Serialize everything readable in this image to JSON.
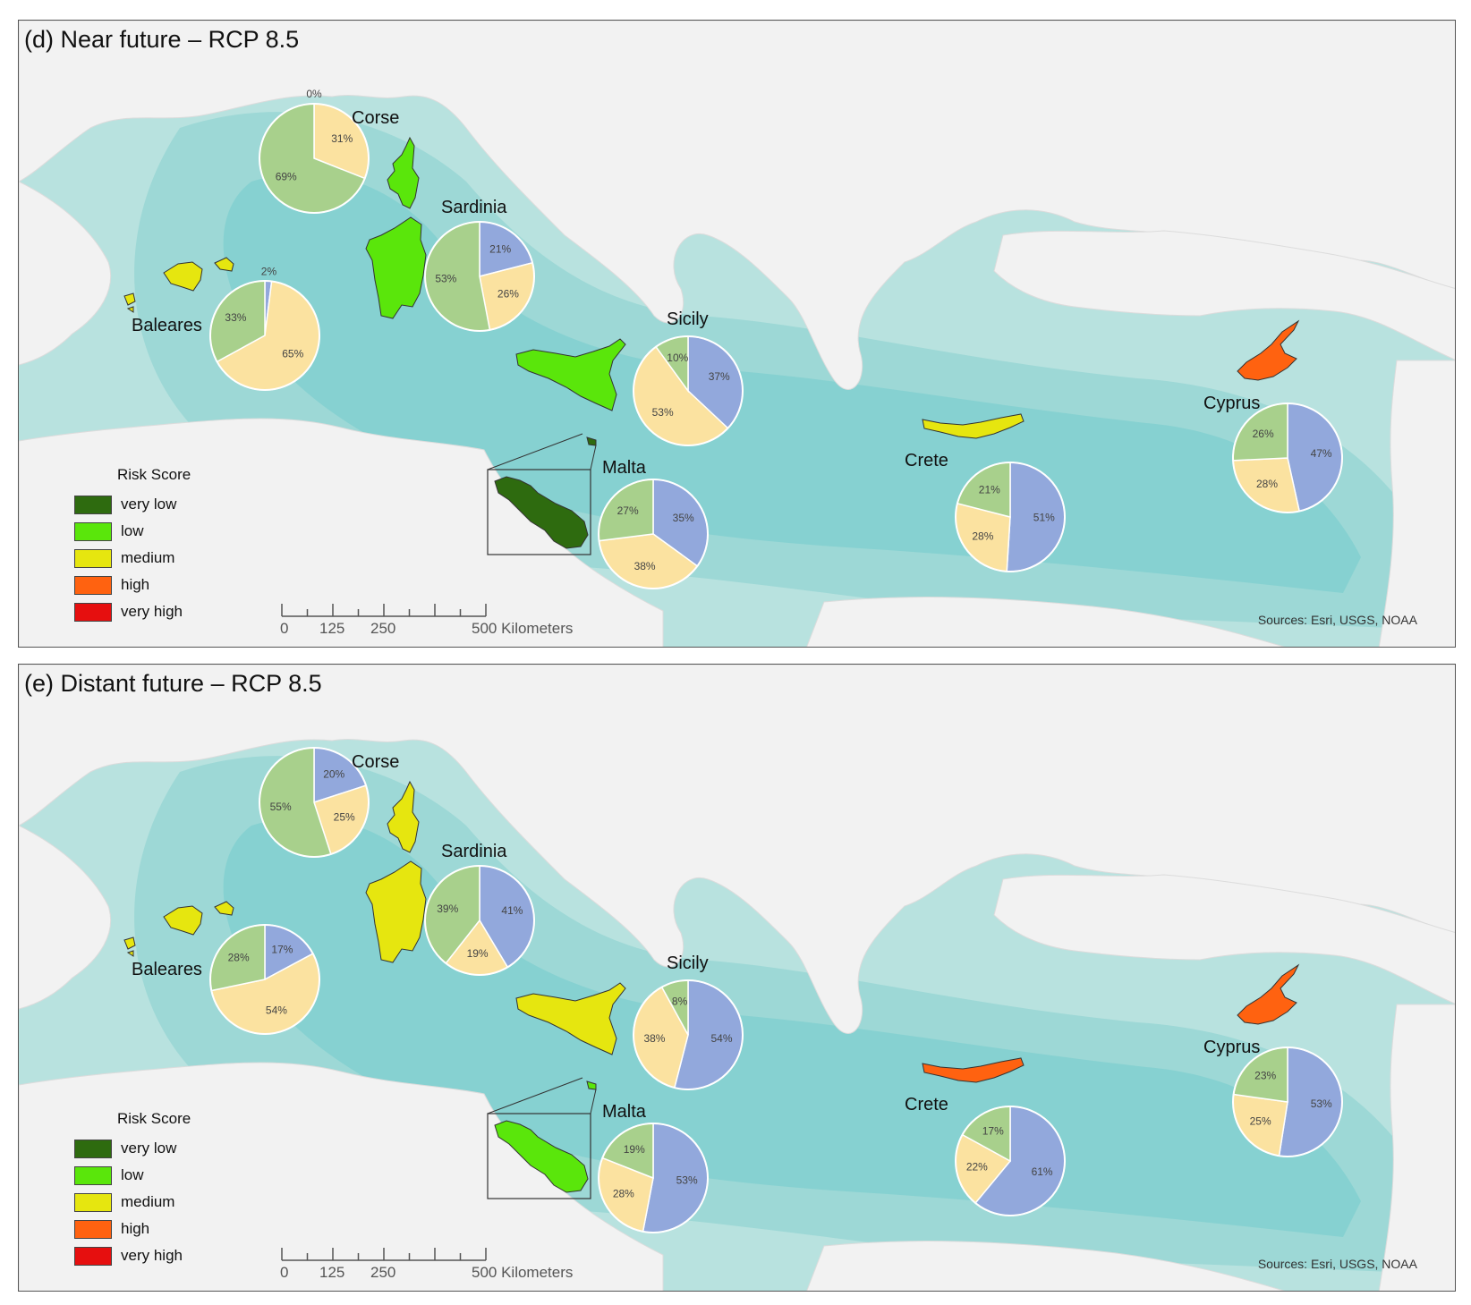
{
  "colors": {
    "sea_light": "#b8e2df",
    "sea_mid": "#9dd8d6",
    "sea_deep": "#7ccfcf",
    "land": "#f2f2f2",
    "very_low": "#2e6b0f",
    "low": "#5ae60b",
    "medium": "#e6e60f",
    "high": "#ff6210",
    "very_high": "#e60f0f",
    "pie_blue": "#92a8dc",
    "pie_yellow": "#fbe2a0",
    "pie_green": "#a8d08c"
  },
  "legend": {
    "title": "Risk Score",
    "items": [
      {
        "label": "very low",
        "color": "#2e6b0f"
      },
      {
        "label": "low",
        "color": "#5ae60b"
      },
      {
        "label": "medium",
        "color": "#e6e60f"
      },
      {
        "label": "high",
        "color": "#ff6210"
      },
      {
        "label": "very high",
        "color": "#e60f0f"
      }
    ]
  },
  "scalebar": {
    "ticks": [
      "0",
      "125",
      "250",
      "500 Kilometers"
    ]
  },
  "sources": "Sources: Esri, USGS, NOAA",
  "panels": [
    {
      "title": "(d) Near future – RCP 8.5",
      "islands": [
        {
          "name": "Corse",
          "risk": "low",
          "pie": [
            {
              "v": 0,
              "c": "blue",
              "label": "0%"
            },
            {
              "v": 31,
              "c": "yellow",
              "label": "31%"
            },
            {
              "v": 69,
              "c": "green",
              "label": "69%"
            }
          ]
        },
        {
          "name": "Sardinia",
          "risk": "low",
          "pie": [
            {
              "v": 21,
              "c": "blue",
              "label": "21%"
            },
            {
              "v": 26,
              "c": "yellow",
              "label": "26%"
            },
            {
              "v": 53,
              "c": "green",
              "label": "53%"
            }
          ]
        },
        {
          "name": "Baleares",
          "risk": "medium",
          "pie": [
            {
              "v": 2,
              "c": "blue",
              "label": "2%"
            },
            {
              "v": 65,
              "c": "yellow",
              "label": "65%"
            },
            {
              "v": 33,
              "c": "green",
              "label": "33%"
            }
          ]
        },
        {
          "name": "Sicily",
          "risk": "low",
          "pie": [
            {
              "v": 37,
              "c": "blue",
              "label": "37%"
            },
            {
              "v": 53,
              "c": "yellow",
              "label": "53%"
            },
            {
              "v": 10,
              "c": "green",
              "label": "10%"
            }
          ]
        },
        {
          "name": "Malta",
          "risk": "very low",
          "pie": [
            {
              "v": 35,
              "c": "blue",
              "label": "35%"
            },
            {
              "v": 38,
              "c": "yellow",
              "label": "38%"
            },
            {
              "v": 27,
              "c": "green",
              "label": "27%"
            }
          ]
        },
        {
          "name": "Crete",
          "risk": "medium",
          "pie": [
            {
              "v": 51,
              "c": "blue",
              "label": "51%"
            },
            {
              "v": 28,
              "c": "yellow",
              "label": "28%"
            },
            {
              "v": 21,
              "c": "green",
              "label": "21%"
            }
          ]
        },
        {
          "name": "Cyprus",
          "risk": "high",
          "pie": [
            {
              "v": 47,
              "c": "blue",
              "label": "47%"
            },
            {
              "v": 28,
              "c": "yellow",
              "label": "28%"
            },
            {
              "v": 26,
              "c": "green",
              "label": "26%"
            }
          ]
        }
      ]
    },
    {
      "title": "(e) Distant future – RCP 8.5",
      "islands": [
        {
          "name": "Corse",
          "risk": "medium",
          "pie": [
            {
              "v": 20,
              "c": "blue",
              "label": "20%"
            },
            {
              "v": 25,
              "c": "yellow",
              "label": "25%"
            },
            {
              "v": 55,
              "c": "green",
              "label": "55%"
            }
          ]
        },
        {
          "name": "Sardinia",
          "risk": "medium",
          "pie": [
            {
              "v": 41,
              "c": "blue",
              "label": "41%"
            },
            {
              "v": 19,
              "c": "yellow",
              "label": "19%"
            },
            {
              "v": 39,
              "c": "green",
              "label": "39%"
            }
          ]
        },
        {
          "name": "Baleares",
          "risk": "medium",
          "pie": [
            {
              "v": 17,
              "c": "blue",
              "label": "17%"
            },
            {
              "v": 54,
              "c": "yellow",
              "label": "54%"
            },
            {
              "v": 28,
              "c": "green",
              "label": "28%"
            }
          ]
        },
        {
          "name": "Sicily",
          "risk": "medium",
          "pie": [
            {
              "v": 54,
              "c": "blue",
              "label": "54%"
            },
            {
              "v": 38,
              "c": "yellow",
              "label": "38%"
            },
            {
              "v": 8,
              "c": "green",
              "label": "8%"
            }
          ]
        },
        {
          "name": "Malta",
          "risk": "low",
          "pie": [
            {
              "v": 53,
              "c": "blue",
              "label": "53%"
            },
            {
              "v": 28,
              "c": "yellow",
              "label": "28%"
            },
            {
              "v": 19,
              "c": "green",
              "label": "19%"
            }
          ]
        },
        {
          "name": "Crete",
          "risk": "high",
          "pie": [
            {
              "v": 61,
              "c": "blue",
              "label": "61%"
            },
            {
              "v": 22,
              "c": "yellow",
              "label": "22%"
            },
            {
              "v": 17,
              "c": "green",
              "label": "17%"
            }
          ]
        },
        {
          "name": "Cyprus",
          "risk": "high",
          "pie": [
            {
              "v": 53,
              "c": "blue",
              "label": "53%"
            },
            {
              "v": 25,
              "c": "yellow",
              "label": "25%"
            },
            {
              "v": 23,
              "c": "green",
              "label": "23%"
            }
          ]
        }
      ]
    }
  ]
}
